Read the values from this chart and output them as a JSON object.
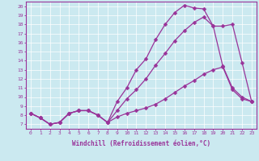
{
  "bg_color": "#cbe9f0",
  "line_color": "#993399",
  "xlabel": "Windchill (Refroidissement éolien,°C)",
  "ylabel_ticks": [
    7,
    8,
    9,
    10,
    11,
    12,
    13,
    14,
    15,
    16,
    17,
    18,
    19,
    20
  ],
  "xlabel_ticks": [
    0,
    1,
    2,
    3,
    4,
    5,
    6,
    7,
    8,
    9,
    10,
    11,
    12,
    13,
    14,
    15,
    16,
    17,
    18,
    19,
    20,
    21,
    22,
    23
  ],
  "xlim": [
    -0.5,
    23.5
  ],
  "ylim": [
    6.5,
    20.5
  ],
  "series": [
    {
      "x": [
        0,
        1,
        2,
        3,
        4,
        5,
        6,
        7,
        8,
        9,
        10,
        11,
        12,
        13,
        14,
        15,
        16,
        17,
        18,
        19,
        20,
        21,
        22,
        23
      ],
      "y": [
        8.2,
        7.7,
        7.0,
        7.2,
        8.2,
        8.5,
        8.5,
        8.0,
        7.2,
        9.5,
        11.0,
        13.0,
        14.2,
        16.3,
        18.0,
        19.3,
        20.1,
        19.8,
        19.7,
        17.8,
        13.4,
        11.0,
        10.0,
        9.5
      ]
    },
    {
      "x": [
        0,
        1,
        2,
        3,
        4,
        5,
        6,
        7,
        8,
        9,
        10,
        11,
        12,
        13,
        14,
        15,
        16,
        17,
        18,
        19,
        20,
        21,
        22,
        23
      ],
      "y": [
        8.2,
        7.7,
        7.0,
        7.2,
        8.2,
        8.5,
        8.5,
        8.0,
        7.2,
        8.5,
        9.8,
        10.8,
        12.0,
        13.5,
        14.8,
        16.2,
        17.3,
        18.2,
        18.8,
        17.8,
        17.8,
        18.0,
        13.8,
        9.5
      ]
    },
    {
      "x": [
        0,
        1,
        2,
        3,
        4,
        5,
        6,
        7,
        8,
        9,
        10,
        11,
        12,
        13,
        14,
        15,
        16,
        17,
        18,
        19,
        20,
        21,
        22,
        23
      ],
      "y": [
        8.2,
        7.7,
        7.0,
        7.2,
        8.2,
        8.5,
        8.5,
        8.0,
        7.2,
        7.8,
        8.2,
        8.5,
        8.8,
        9.2,
        9.8,
        10.5,
        11.2,
        11.8,
        12.5,
        13.0,
        13.3,
        10.8,
        9.8,
        9.5
      ]
    }
  ],
  "markersize": 2.5,
  "linewidth": 0.9,
  "tick_fontsize": 4.5,
  "xlabel_fontsize": 5.5,
  "grid_color": "#ffffff",
  "grid_linewidth": 0.5
}
